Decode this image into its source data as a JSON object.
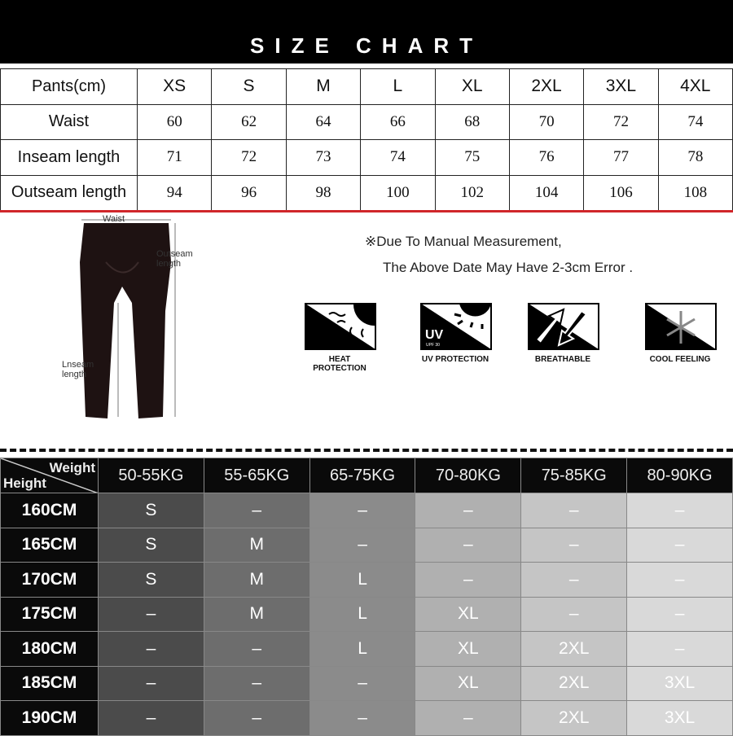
{
  "title": "SIZE  CHART",
  "size_table": {
    "header": [
      "Pants(cm)",
      "XS",
      "S",
      "M",
      "L",
      "XL",
      "2XL",
      "3XL",
      "4XL"
    ],
    "rows": [
      {
        "label": "Waist",
        "values": [
          "60",
          "62",
          "64",
          "66",
          "68",
          "70",
          "72",
          "74"
        ]
      },
      {
        "label": "Inseam length",
        "values": [
          "71",
          "72",
          "73",
          "74",
          "75",
          "76",
          "77",
          "78"
        ]
      },
      {
        "label": "Outseam length",
        "values": [
          "94",
          "96",
          "98",
          "100",
          "102",
          "104",
          "106",
          "108"
        ]
      }
    ]
  },
  "diagram": {
    "waist": "Waist",
    "outseam": "Outseam length",
    "inseam": "Lnseam length"
  },
  "note": {
    "line1": "※Due To Manual Measurement,",
    "line2": "The Above Date May Have 2-3cm Error ."
  },
  "features": [
    {
      "icon": "heat-protection-icon",
      "label": "HEAT PROTECTION"
    },
    {
      "icon": "uv-protection-icon",
      "label": "UV PROTECTION",
      "badge": "UV",
      "sub": "UPF 30"
    },
    {
      "icon": "breathable-icon",
      "label": "BREATHABLE"
    },
    {
      "icon": "cool-feeling-icon",
      "label": "COOL FEELING"
    }
  ],
  "fit_grid": {
    "corner_top": "Weight",
    "corner_bottom": "Height",
    "weights": [
      "50-55KG",
      "55-65KG",
      "65-75KG",
      "70-80KG",
      "75-85KG",
      "80-90KG"
    ],
    "column_colors": [
      "#4b4b4b",
      "#6d6d6d",
      "#8b8b8b",
      "#b0b0b0",
      "#c5c5c5",
      "#d9d9d9"
    ],
    "rows": [
      {
        "height": "160CM",
        "sizes": [
          "S",
          "–",
          "–",
          "–",
          "–",
          "–"
        ]
      },
      {
        "height": "165CM",
        "sizes": [
          "S",
          "M",
          "–",
          "–",
          "–",
          "–"
        ]
      },
      {
        "height": "170CM",
        "sizes": [
          "S",
          "M",
          "L",
          "–",
          "–",
          "–"
        ]
      },
      {
        "height": "175CM",
        "sizes": [
          "–",
          "M",
          "L",
          "XL",
          "–",
          "–"
        ]
      },
      {
        "height": "180CM",
        "sizes": [
          "–",
          "–",
          "L",
          "XL",
          "2XL",
          "–"
        ]
      },
      {
        "height": "185CM",
        "sizes": [
          "–",
          "–",
          "–",
          "XL",
          "2XL",
          "3XL"
        ]
      },
      {
        "height": "190CM",
        "sizes": [
          "–",
          "–",
          "–",
          "–",
          "2XL",
          "3XL"
        ]
      }
    ]
  }
}
